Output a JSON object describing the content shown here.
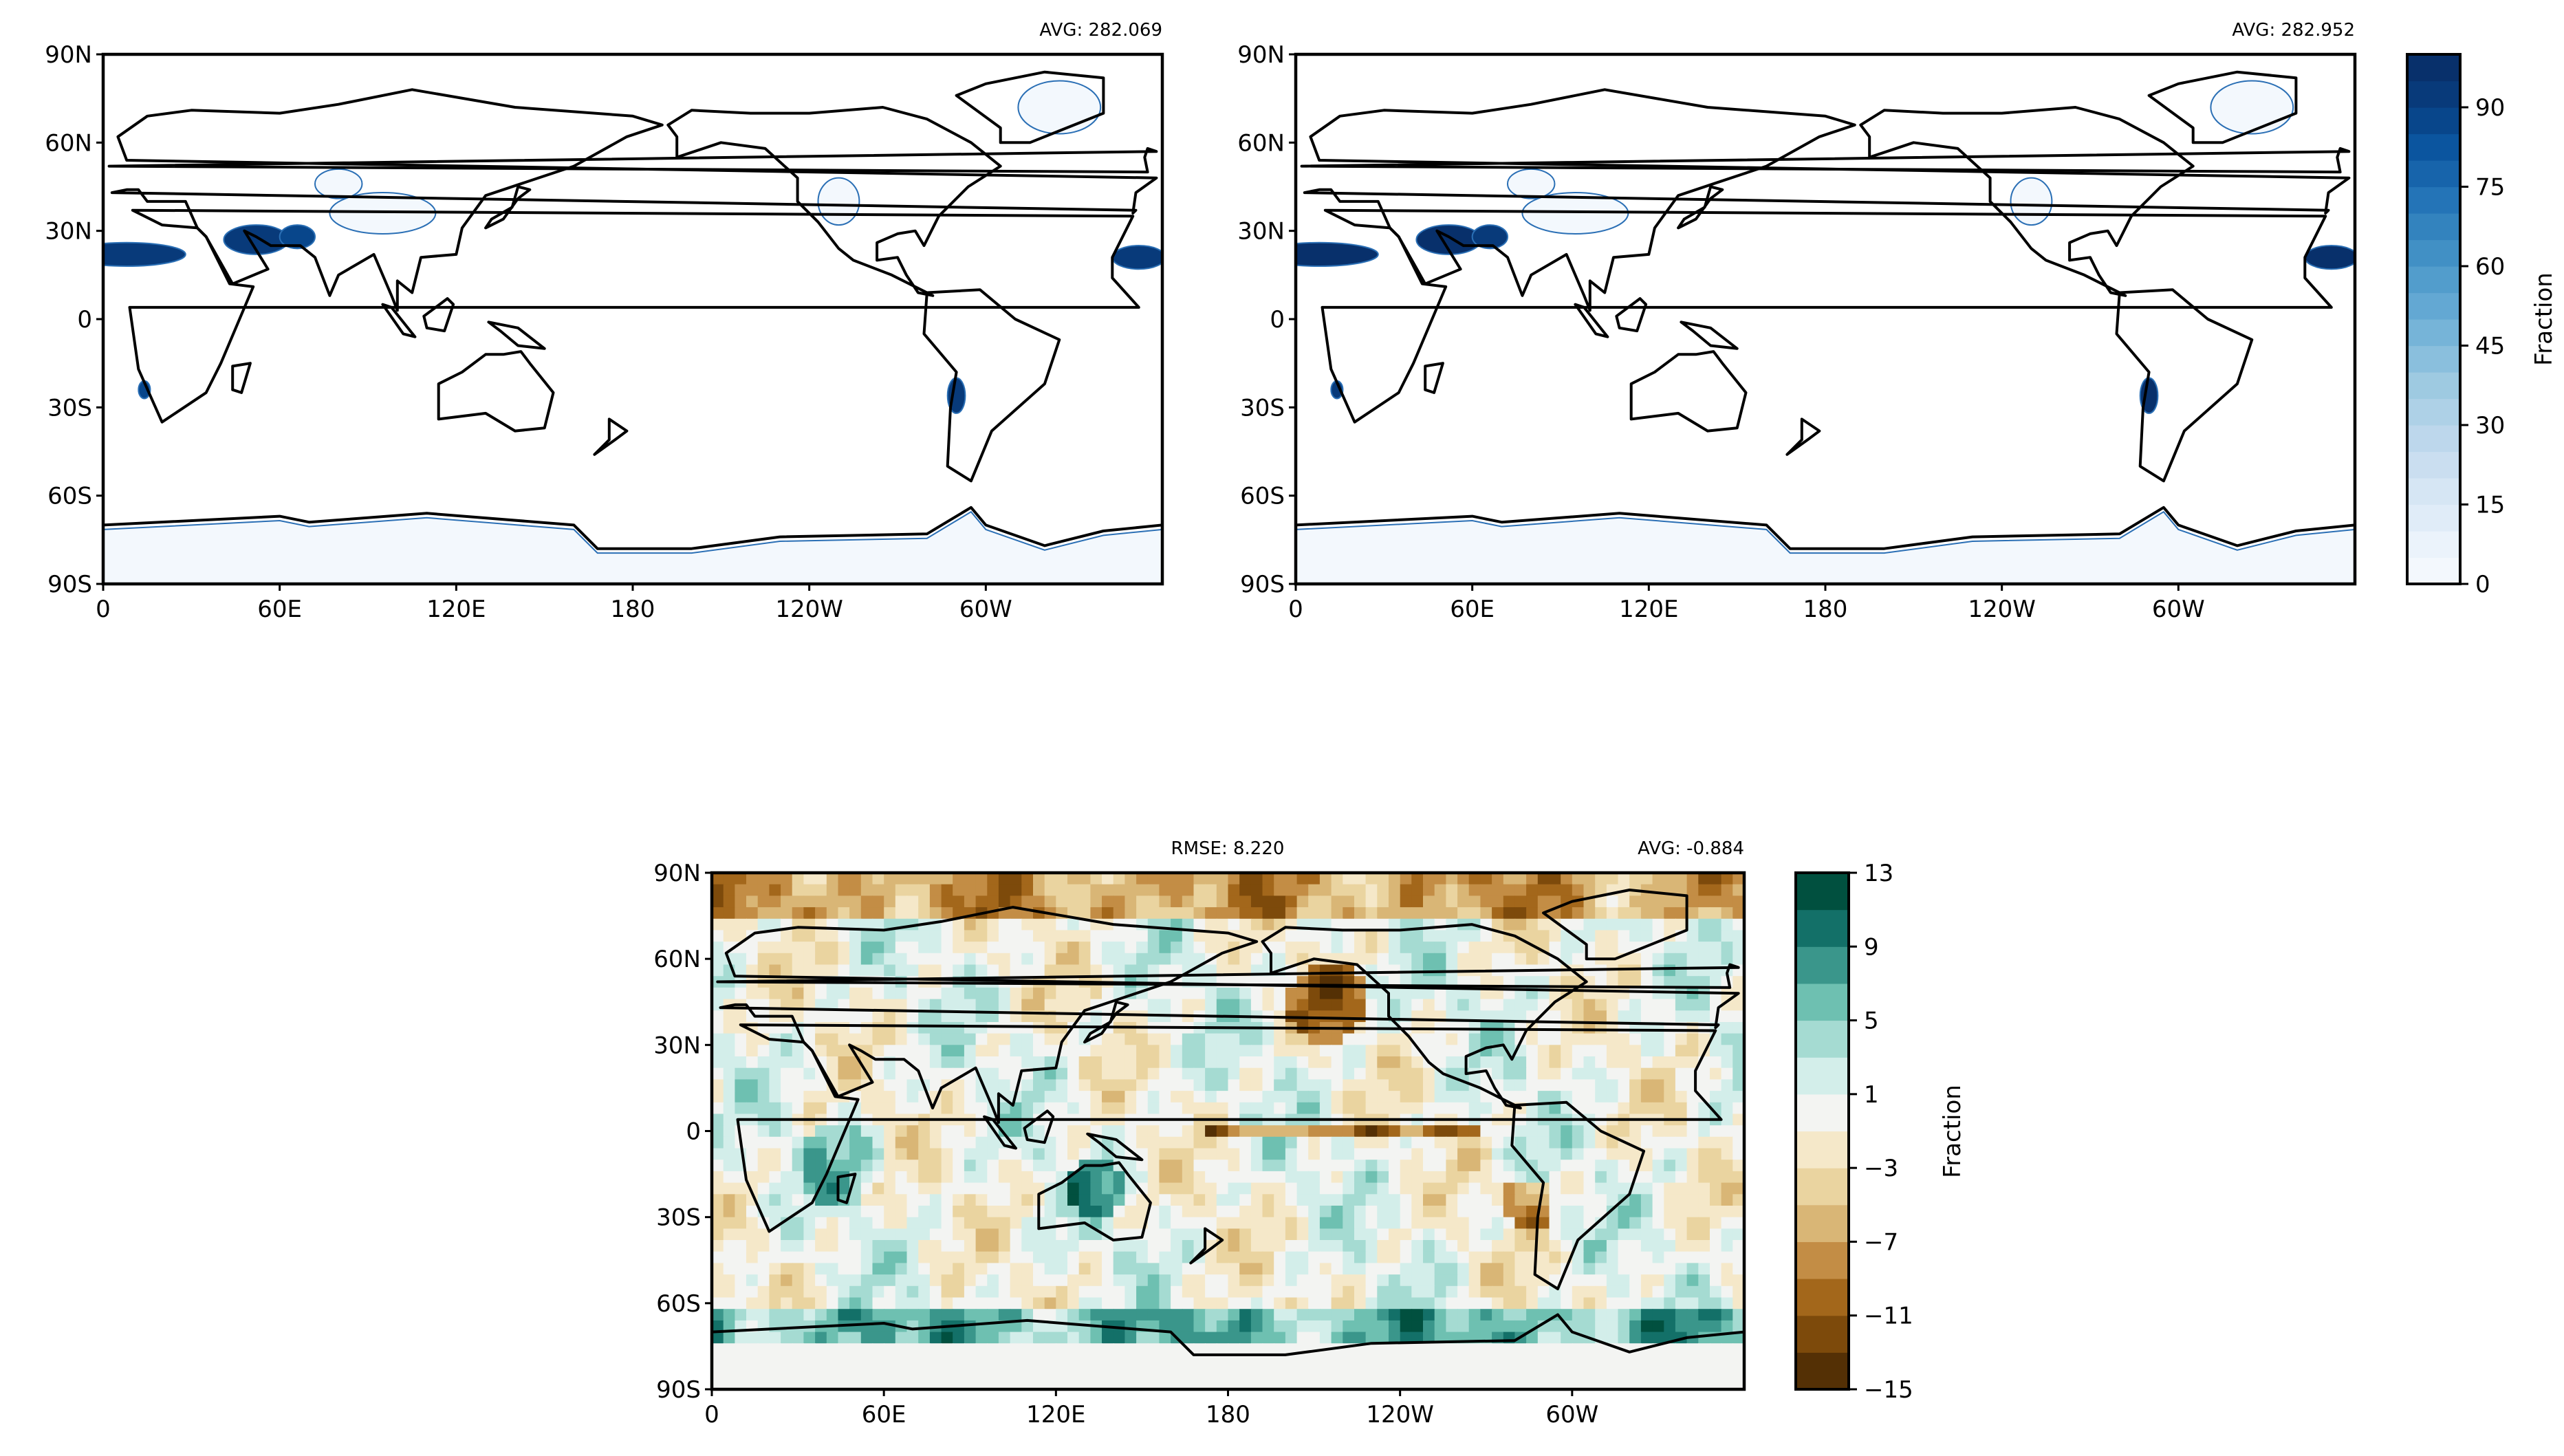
{
  "chart_data": [
    {
      "type": "heatmap",
      "panel": "top-left",
      "avg_label": "AVG: 282.069",
      "x_ticks": [
        "0",
        "60E",
        "120E",
        "180",
        "120W",
        "60W"
      ],
      "x_tick_values": [
        0,
        60,
        120,
        180,
        240,
        300
      ],
      "y_ticks": [
        "90N",
        "60N",
        "30N",
        "0",
        "30S",
        "60S",
        "90S"
      ],
      "y_tick_values": [
        90,
        60,
        30,
        0,
        -30,
        -60,
        -90
      ],
      "xlim": [
        0,
        360
      ],
      "ylim": [
        -90,
        90
      ],
      "colormap": "Blues",
      "coastlines": true
    },
    {
      "type": "heatmap",
      "panel": "top-right",
      "avg_label": "AVG: 282.952",
      "x_ticks": [
        "0",
        "60E",
        "120E",
        "180",
        "120W",
        "60W"
      ],
      "x_tick_values": [
        0,
        60,
        120,
        180,
        240,
        300
      ],
      "y_ticks": [
        "90N",
        "60N",
        "30N",
        "0",
        "30S",
        "60S",
        "90S"
      ],
      "y_tick_values": [
        90,
        60,
        30,
        0,
        -30,
        -60,
        -90
      ],
      "xlim": [
        0,
        360
      ],
      "ylim": [
        -90,
        90
      ],
      "colormap": "Blues",
      "coastlines": true,
      "colorbar": {
        "label": "Fraction",
        "ticks": [
          "0",
          "15",
          "30",
          "45",
          "60",
          "75",
          "90"
        ],
        "tick_values": [
          0,
          15,
          30,
          45,
          60,
          75,
          90
        ],
        "range": [
          0,
          100
        ],
        "colors": [
          "#f3f8fd",
          "#ebf3fb",
          "#e0ecf8",
          "#d6e6f4",
          "#cadef0",
          "#bdd7ec",
          "#aed1e7",
          "#9ecae1",
          "#8abfdd",
          "#76b4d8",
          "#63a8d3",
          "#529dcc",
          "#4190c5",
          "#3383be",
          "#2474b7",
          "#1764ab",
          "#0b559f",
          "#08468b",
          "#083a7a",
          "#08306b"
        ]
      }
    },
    {
      "type": "heatmap",
      "panel": "bottom-difference",
      "rmse_label": "RMSE: 8.220",
      "avg_label": "AVG: -0.884",
      "x_ticks": [
        "0",
        "60E",
        "120E",
        "180",
        "120W",
        "60W"
      ],
      "x_tick_values": [
        0,
        60,
        120,
        180,
        240,
        300
      ],
      "y_ticks": [
        "90N",
        "60N",
        "30N",
        "0",
        "30S",
        "60S",
        "90S"
      ],
      "y_tick_values": [
        90,
        60,
        30,
        0,
        -30,
        -60,
        -90
      ],
      "xlim": [
        0,
        360
      ],
      "ylim": [
        -90,
        90
      ],
      "colormap": "BrBG",
      "coastlines": true,
      "colorbar": {
        "label": "Fraction",
        "ticks": [
          "13",
          "9",
          "5",
          "1",
          "−3",
          "−7",
          "−11",
          "−15"
        ],
        "tick_values": [
          13,
          9,
          5,
          1,
          -3,
          -7,
          -11,
          -15
        ],
        "range": [
          -15,
          13
        ],
        "colors": [
          "#543005",
          "#7d4a0b",
          "#a3671b",
          "#c38d45",
          "#d9b676",
          "#ead4a0",
          "#f5e8c9",
          "#f3f4f2",
          "#d3eeea",
          "#a5dbd2",
          "#6ec0b1",
          "#3a968b",
          "#137068",
          "#01503f"
        ]
      }
    }
  ]
}
